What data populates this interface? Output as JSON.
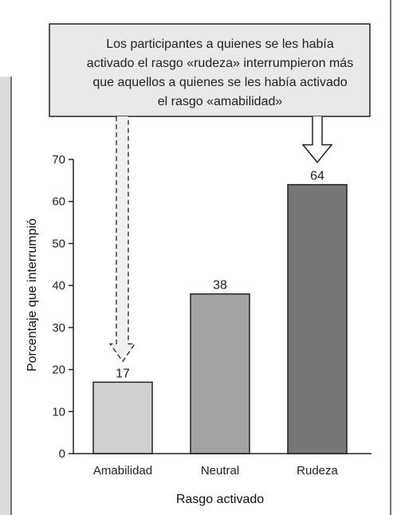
{
  "colors": {
    "page_bg": "#ffffff",
    "left_strip": "#dcdcdc",
    "callout_fill": "#e9e9e9",
    "bar_amabilidad": "#d0d0d0",
    "bar_neutral": "#a3a3a3",
    "bar_rudeza": "#777777",
    "outline": "#222222"
  },
  "callout": {
    "lines": [
      "Los participantes a quienes se les había",
      "activado el rasgo «rudeza» interrumpieron más",
      "que aquellos a quienes se les había activado",
      "el rasgo «amabilidad»"
    ]
  },
  "chart_data": {
    "type": "bar",
    "categories": [
      "Amabilidad",
      "Neutral",
      "Rudeza"
    ],
    "values": [
      17,
      38,
      64
    ],
    "data_labels": [
      "17",
      "38",
      "64"
    ],
    "title": "",
    "xlabel": "Rasgo activado",
    "ylabel": "Porcentaje que interrumpió",
    "ylim": [
      0,
      70
    ],
    "yticks": [
      0,
      10,
      20,
      30,
      40,
      50,
      60,
      70
    ],
    "ytick_labels": [
      "0",
      "10",
      "20",
      "30",
      "40",
      "50",
      "60",
      "70"
    ],
    "grid": false,
    "legend": "none"
  }
}
